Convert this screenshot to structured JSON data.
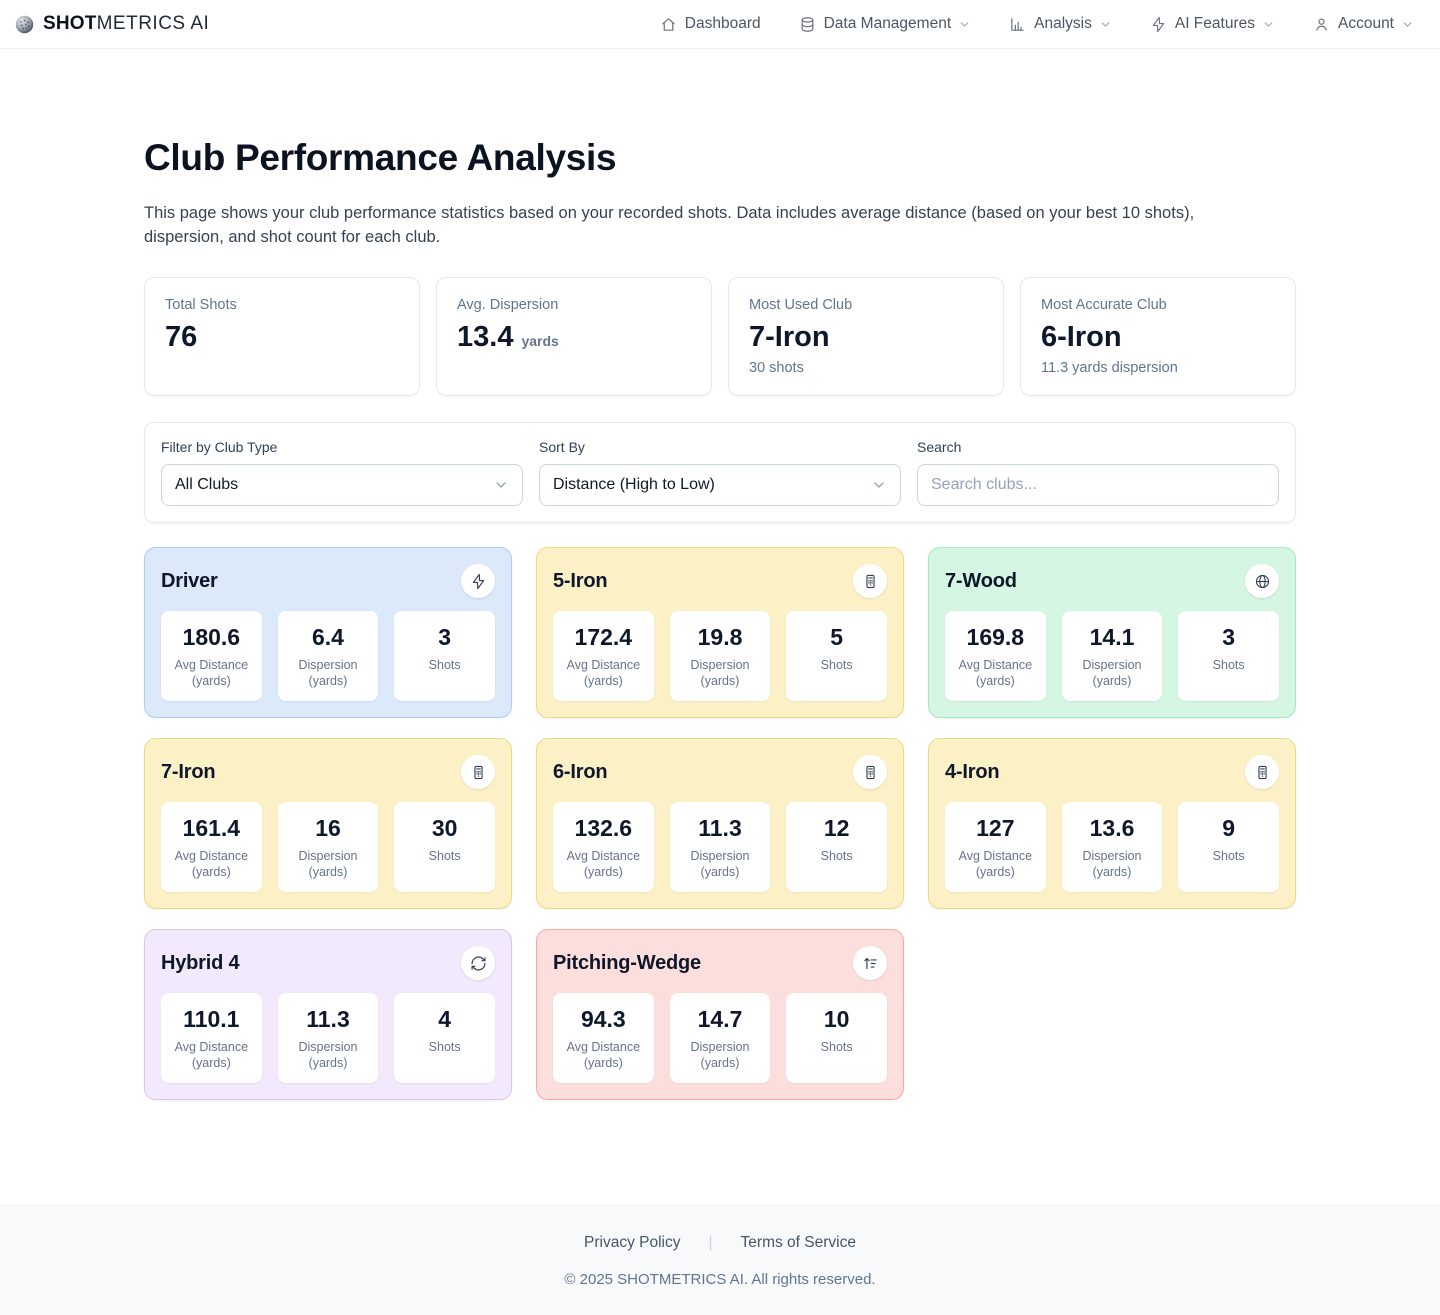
{
  "brand": {
    "bold": "SHOT",
    "rest": "METRICS AI"
  },
  "nav": {
    "items": [
      {
        "label": "Dashboard",
        "icon": "home-icon",
        "has_dropdown": false
      },
      {
        "label": "Data Management",
        "icon": "database-icon",
        "has_dropdown": true
      },
      {
        "label": "Analysis",
        "icon": "bar-chart-icon",
        "has_dropdown": true
      },
      {
        "label": "AI Features",
        "icon": "lightning-icon",
        "has_dropdown": true
      },
      {
        "label": "Account",
        "icon": "user-icon",
        "has_dropdown": true
      }
    ]
  },
  "page": {
    "title": "Club Performance Analysis",
    "description": "This page shows your club performance statistics based on your recorded shots. Data includes average distance (based on your best 10 shots), dispersion, and shot count for each club."
  },
  "summary": {
    "total_shots": {
      "label": "Total Shots",
      "value": "76"
    },
    "avg_dispersion": {
      "label": "Avg. Dispersion",
      "value": "13.4",
      "unit": "yards"
    },
    "most_used": {
      "label": "Most Used Club",
      "value": "7-Iron",
      "subtext": "30 shots"
    },
    "most_accurate": {
      "label": "Most Accurate Club",
      "value": "6-Iron",
      "subtext": "11.3 yards dispersion"
    }
  },
  "filters": {
    "club_type_label": "Filter by Club Type",
    "club_type_value": "All Clubs",
    "sort_label": "Sort By",
    "sort_value": "Distance (High to Low)",
    "search_label": "Search",
    "search_placeholder": "Search clubs..."
  },
  "stat_columns": [
    {
      "key": "avg_distance",
      "lines": [
        "Avg Distance",
        "(yards)"
      ]
    },
    {
      "key": "dispersion",
      "lines": [
        "Dispersion",
        "(yards)"
      ]
    },
    {
      "key": "shots",
      "lines": [
        "Shots"
      ]
    }
  ],
  "clubs": [
    {
      "name": "Driver",
      "icon": "lightning-icon",
      "colors": {
        "bg": "#dbe9fb",
        "border": "#a9cdf3"
      },
      "avg_distance": "180.6",
      "dispersion": "6.4",
      "shots": "3"
    },
    {
      "name": "5-Iron",
      "icon": "calculator-icon",
      "colors": {
        "bg": "#fcf1c6",
        "border": "#f0d77e"
      },
      "avg_distance": "172.4",
      "dispersion": "19.8",
      "shots": "5"
    },
    {
      "name": "7-Wood",
      "icon": "globe-icon",
      "colors": {
        "bg": "#d5f6e3",
        "border": "#a4e9c3"
      },
      "avg_distance": "169.8",
      "dispersion": "14.1",
      "shots": "3"
    },
    {
      "name": "7-Iron",
      "icon": "calculator-icon",
      "colors": {
        "bg": "#fcf1c6",
        "border": "#f0d77e"
      },
      "avg_distance": "161.4",
      "dispersion": "16",
      "shots": "30"
    },
    {
      "name": "6-Iron",
      "icon": "calculator-icon",
      "colors": {
        "bg": "#fcf1c6",
        "border": "#f0d77e"
      },
      "avg_distance": "132.6",
      "dispersion": "11.3",
      "shots": "12"
    },
    {
      "name": "4-Iron",
      "icon": "calculator-icon",
      "colors": {
        "bg": "#fcf1c6",
        "border": "#f0d77e"
      },
      "avg_distance": "127",
      "dispersion": "13.6",
      "shots": "9"
    },
    {
      "name": "Hybrid 4",
      "icon": "refresh-icon",
      "colors": {
        "bg": "#f3e9fc",
        "border": "#dcc2f1"
      },
      "avg_distance": "110.1",
      "dispersion": "11.3",
      "shots": "4"
    },
    {
      "name": "Pitching-Wedge",
      "icon": "sort-ascending-icon",
      "colors": {
        "bg": "#fcdfdd",
        "border": "#f2aba6"
      },
      "avg_distance": "94.3",
      "dispersion": "14.7",
      "shots": "10"
    }
  ],
  "footer": {
    "privacy": "Privacy Policy",
    "separator": "|",
    "terms": "Terms of Service",
    "copyright": "© 2025 SHOTMETRICS AI. All rights reserved."
  }
}
